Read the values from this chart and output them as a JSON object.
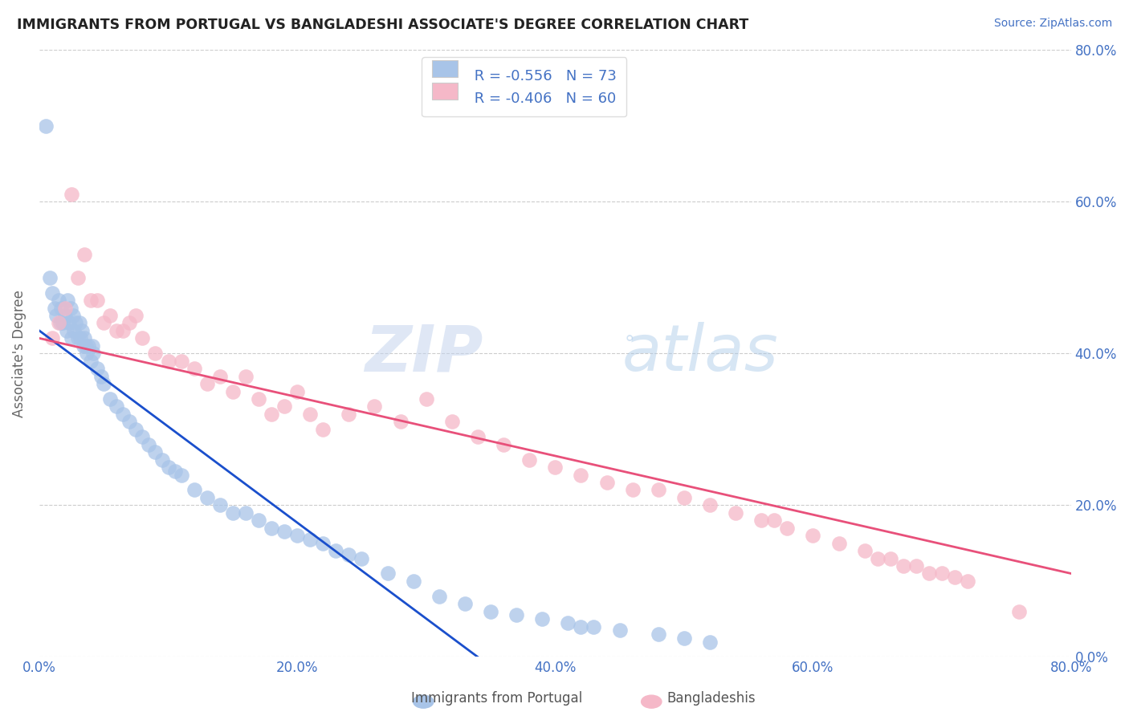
{
  "title": "IMMIGRANTS FROM PORTUGAL VS BANGLADESHI ASSOCIATE'S DEGREE CORRELATION CHART",
  "source": "Source: ZipAtlas.com",
  "ylabel": "Associate's Degree",
  "legend_blue_r": "R = -0.556",
  "legend_blue_n": "N = 73",
  "legend_pink_r": "R = -0.406",
  "legend_pink_n": "N = 60",
  "legend_label_blue": "Immigrants from Portugal",
  "legend_label_pink": "Bangladeshis",
  "blue_color": "#a8c4e8",
  "pink_color": "#f5b8c8",
  "blue_line_color": "#1a4fcc",
  "pink_line_color": "#e8507a",
  "watermark_zip": "ZIP",
  "watermark_atlas": "atlas",
  "blue_scatter_x": [
    0.5,
    0.8,
    1.0,
    1.2,
    1.3,
    1.5,
    1.6,
    1.7,
    1.8,
    2.0,
    2.1,
    2.2,
    2.3,
    2.4,
    2.5,
    2.6,
    2.7,
    2.8,
    3.0,
    3.1,
    3.2,
    3.3,
    3.4,
    3.5,
    3.6,
    3.7,
    3.8,
    4.0,
    4.1,
    4.2,
    4.5,
    4.8,
    5.0,
    5.5,
    6.0,
    6.5,
    7.0,
    7.5,
    8.0,
    8.5,
    9.0,
    9.5,
    10.0,
    10.5,
    11.0,
    12.0,
    13.0,
    14.0,
    15.0,
    16.0,
    17.0,
    18.0,
    19.0,
    20.0,
    21.0,
    22.0,
    23.0,
    24.0,
    25.0,
    27.0,
    29.0,
    31.0,
    33.0,
    35.0,
    37.0,
    39.0,
    41.0,
    42.0,
    43.0,
    45.0,
    48.0,
    50.0,
    52.0
  ],
  "blue_scatter_y": [
    70.0,
    50.0,
    48.0,
    46.0,
    45.0,
    47.0,
    44.0,
    46.0,
    44.0,
    45.0,
    43.0,
    47.0,
    44.0,
    46.0,
    42.0,
    45.0,
    43.0,
    44.0,
    42.0,
    44.0,
    42.0,
    43.0,
    41.0,
    42.0,
    41.0,
    40.0,
    41.0,
    39.0,
    41.0,
    40.0,
    38.0,
    37.0,
    36.0,
    34.0,
    33.0,
    32.0,
    31.0,
    30.0,
    29.0,
    28.0,
    27.0,
    26.0,
    25.0,
    24.5,
    24.0,
    22.0,
    21.0,
    20.0,
    19.0,
    19.0,
    18.0,
    17.0,
    16.5,
    16.0,
    15.5,
    15.0,
    14.0,
    13.5,
    13.0,
    11.0,
    10.0,
    8.0,
    7.0,
    6.0,
    5.5,
    5.0,
    4.5,
    4.0,
    4.0,
    3.5,
    3.0,
    2.5,
    2.0
  ],
  "pink_scatter_x": [
    1.0,
    1.5,
    2.0,
    2.5,
    3.0,
    3.5,
    4.0,
    4.5,
    5.0,
    5.5,
    6.0,
    6.5,
    7.0,
    7.5,
    8.0,
    9.0,
    10.0,
    11.0,
    12.0,
    13.0,
    14.0,
    15.0,
    16.0,
    17.0,
    18.0,
    19.0,
    20.0,
    21.0,
    22.0,
    24.0,
    26.0,
    28.0,
    30.0,
    32.0,
    34.0,
    36.0,
    38.0,
    40.0,
    42.0,
    44.0,
    46.0,
    48.0,
    50.0,
    52.0,
    54.0,
    56.0,
    57.0,
    58.0,
    60.0,
    62.0,
    64.0,
    65.0,
    66.0,
    67.0,
    68.0,
    69.0,
    70.0,
    71.0,
    72.0,
    76.0
  ],
  "pink_scatter_y": [
    42.0,
    44.0,
    46.0,
    61.0,
    50.0,
    53.0,
    47.0,
    47.0,
    44.0,
    45.0,
    43.0,
    43.0,
    44.0,
    45.0,
    42.0,
    40.0,
    39.0,
    39.0,
    38.0,
    36.0,
    37.0,
    35.0,
    37.0,
    34.0,
    32.0,
    33.0,
    35.0,
    32.0,
    30.0,
    32.0,
    33.0,
    31.0,
    34.0,
    31.0,
    29.0,
    28.0,
    26.0,
    25.0,
    24.0,
    23.0,
    22.0,
    22.0,
    21.0,
    20.0,
    19.0,
    18.0,
    18.0,
    17.0,
    16.0,
    15.0,
    14.0,
    13.0,
    13.0,
    12.0,
    12.0,
    11.0,
    11.0,
    10.5,
    10.0,
    6.0
  ],
  "xlim": [
    0,
    80
  ],
  "ylim": [
    0,
    80
  ],
  "ytick_values": [
    0,
    20,
    40,
    60,
    80
  ],
  "ytick_labels": [
    "0.0%",
    "20.0%",
    "40.0%",
    "60.0%",
    "80.0%"
  ],
  "xtick_values": [
    0,
    20,
    40,
    60,
    80
  ],
  "xtick_labels": [
    "0.0%",
    "20.0%",
    "40.0%",
    "60.0%",
    "80.0%"
  ],
  "text_color": "#4472c4",
  "grid_color": "#cccccc",
  "title_color": "#222222",
  "ylabel_color": "#666666",
  "background_color": "#ffffff",
  "blue_trend_x0": 0,
  "blue_trend_y0": 43.0,
  "blue_trend_x1": 34,
  "blue_trend_y1": 0,
  "pink_trend_x0": 0,
  "pink_trend_y0": 42.0,
  "pink_trend_x1": 80,
  "pink_trend_y1": 11.0
}
